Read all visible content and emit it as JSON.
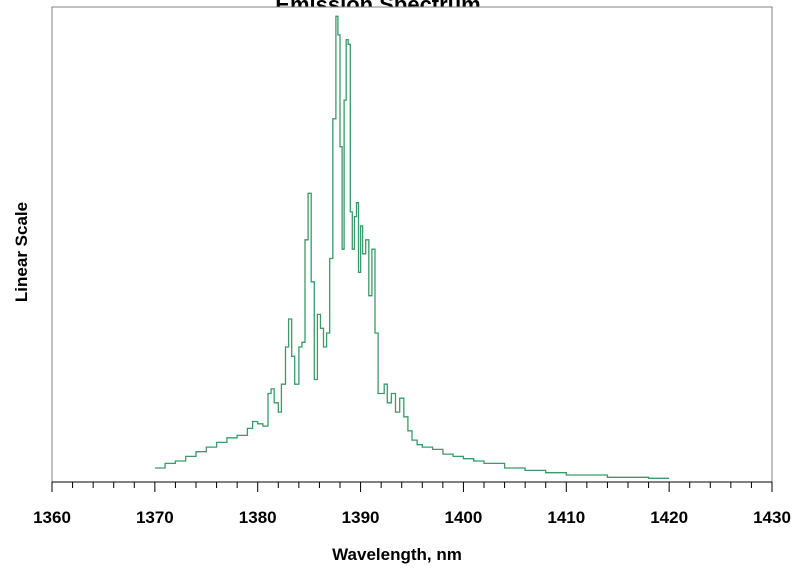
{
  "chart_data": {
    "type": "line",
    "title": "Emission Spectrum",
    "xlabel": "Wavelength, nm",
    "ylabel": "Linear Scale",
    "xlim": [
      1360,
      1430
    ],
    "ylim": [
      0,
      1.02
    ],
    "x_ticks": [
      "1360",
      "1370",
      "1380",
      "1390",
      "1400",
      "1410",
      "1420",
      "1430"
    ],
    "y_ticks_shown": false,
    "grid": false,
    "legend": "none",
    "series": [
      {
        "color": "#3a9a6a",
        "x": [
          1370,
          1371,
          1372,
          1373,
          1374,
          1375,
          1376,
          1377,
          1378,
          1379,
          1379.5,
          1380,
          1380.5,
          1381,
          1381.3,
          1381.6,
          1382,
          1382.3,
          1382.7,
          1383,
          1383.3,
          1383.6,
          1384,
          1384.3,
          1384.6,
          1384.9,
          1385.2,
          1385.5,
          1385.8,
          1386.1,
          1386.4,
          1386.7,
          1387.0,
          1387.3,
          1387.6,
          1387.8,
          1388.0,
          1388.2,
          1388.4,
          1388.6,
          1388.8,
          1389.0,
          1389.2,
          1389.4,
          1389.6,
          1389.8,
          1390.0,
          1390.2,
          1390.5,
          1390.8,
          1391.1,
          1391.4,
          1391.7,
          1392.0,
          1392.3,
          1392.6,
          1393.0,
          1393.4,
          1393.8,
          1394.2,
          1394.6,
          1395.0,
          1395.5,
          1396,
          1397,
          1398,
          1399,
          1400,
          1401,
          1402,
          1404,
          1406,
          1408,
          1410,
          1413,
          1414,
          1416,
          1418,
          1420
        ],
        "values": [
          0.03,
          0.04,
          0.045,
          0.055,
          0.065,
          0.075,
          0.085,
          0.095,
          0.1,
          0.115,
          0.13,
          0.125,
          0.12,
          0.19,
          0.2,
          0.17,
          0.15,
          0.21,
          0.29,
          0.35,
          0.27,
          0.21,
          0.29,
          0.3,
          0.52,
          0.62,
          0.43,
          0.22,
          0.36,
          0.33,
          0.29,
          0.32,
          0.48,
          0.78,
          1.0,
          0.96,
          0.72,
          0.5,
          0.82,
          0.95,
          0.94,
          0.58,
          0.5,
          0.57,
          0.6,
          0.45,
          0.55,
          0.49,
          0.52,
          0.4,
          0.5,
          0.32,
          0.19,
          0.19,
          0.21,
          0.17,
          0.19,
          0.15,
          0.18,
          0.14,
          0.11,
          0.09,
          0.08,
          0.075,
          0.07,
          0.06,
          0.055,
          0.05,
          0.045,
          0.04,
          0.03,
          0.025,
          0.02,
          0.015,
          0.015,
          0.01,
          0.01,
          0.008,
          0.008
        ]
      }
    ]
  }
}
